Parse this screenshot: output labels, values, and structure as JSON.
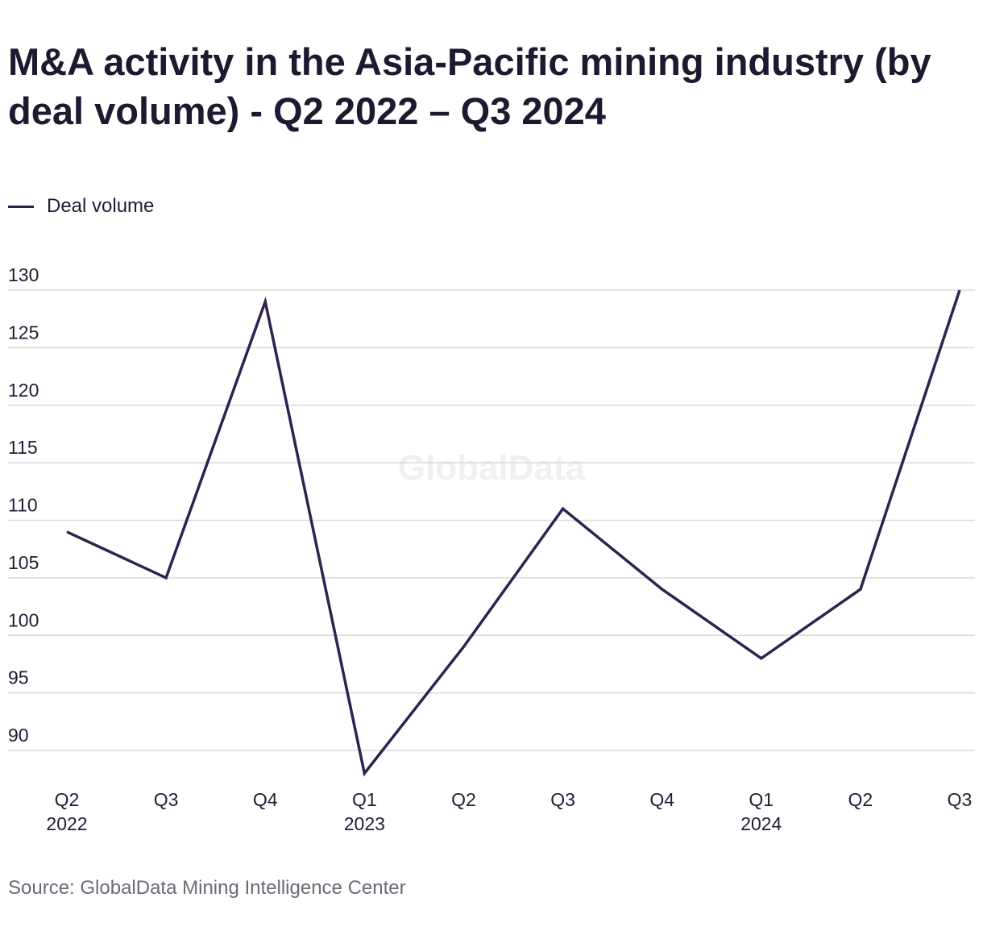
{
  "title": "M&A activity in the Asia-Pacific mining industry (by deal volume) - Q2 2022 – Q3 2024",
  "legend": {
    "label": "Deal volume"
  },
  "source": "Source: GlobalData Mining Intelligence Center",
  "watermark": "GlobalData",
  "colors": {
    "line": "#30224f",
    "grid": "#d9d9d9",
    "text": "#1f1d33",
    "source": "#6b6a75",
    "watermark": "#f0f0f0"
  },
  "chart_data": {
    "type": "line",
    "title": "M&A activity in the Asia-Pacific mining industry (by deal volume) - Q2 2022 – Q3 2024",
    "categories": [
      "Q2 2022",
      "Q3",
      "Q4",
      "Q1 2023",
      "Q2",
      "Q3",
      "Q4",
      "Q1 2024",
      "Q2",
      "Q3"
    ],
    "x_tick_labels": [
      [
        "Q2",
        "2022"
      ],
      [
        "Q3",
        ""
      ],
      [
        "Q4",
        ""
      ],
      [
        "Q1",
        "2023"
      ],
      [
        "Q2",
        ""
      ],
      [
        "Q3",
        ""
      ],
      [
        "Q4",
        ""
      ],
      [
        "Q1",
        "2024"
      ],
      [
        "Q2",
        ""
      ],
      [
        "Q3",
        ""
      ]
    ],
    "series": [
      {
        "name": "Deal volume",
        "values": [
          109,
          105,
          129,
          88,
          99,
          111,
          104,
          98,
          104,
          130
        ]
      }
    ],
    "y_ticks": [
      90,
      95,
      100,
      105,
      110,
      115,
      120,
      125,
      130
    ],
    "ylim": [
      90,
      130
    ],
    "grid": true,
    "legend_position": "top-left"
  }
}
